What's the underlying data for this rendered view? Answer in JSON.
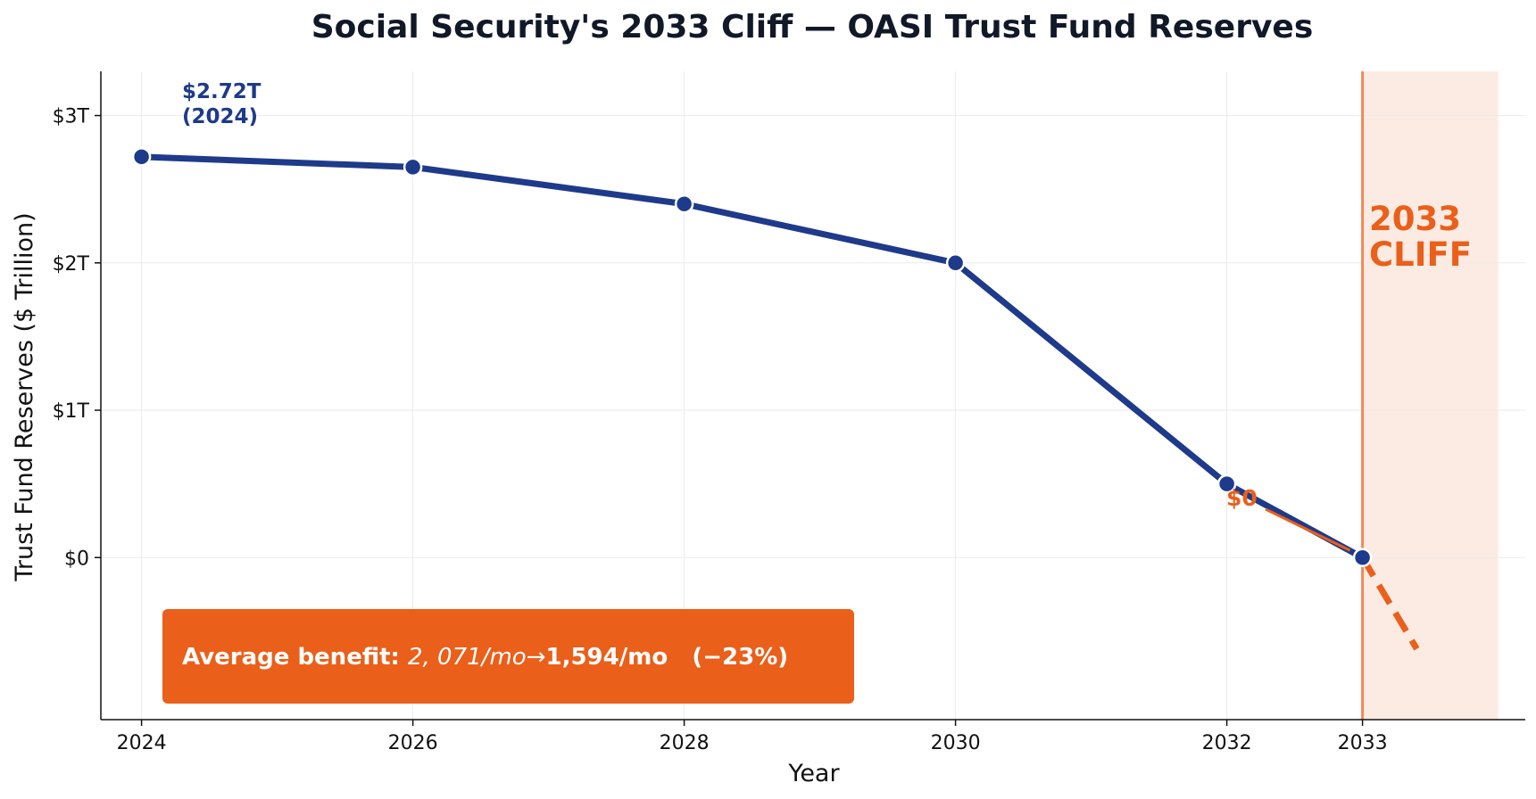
{
  "chart_data": {
    "type": "line",
    "title": "Social Security's 2033 Cliff — OASI Trust Fund Reserves",
    "xlabel": "Year",
    "ylabel": "Trust Fund Reserves ($ Trillion)",
    "x_ticks": [
      2024,
      2026,
      2028,
      2030,
      2032,
      2033
    ],
    "x_tick_labels": [
      "2024",
      "2026",
      "2028",
      "2030",
      "2032",
      "2033"
    ],
    "y_ticks": [
      0,
      1,
      2,
      3
    ],
    "y_tick_labels": [
      "$0",
      "$1T",
      "$2T",
      "$3T"
    ],
    "xlim": [
      2023.7,
      2034.2
    ],
    "ylim": [
      -1.1,
      3.3
    ],
    "grid": true,
    "series": [
      {
        "x": [
          2024,
          2026,
          2028,
          2030,
          2032,
          2033
        ],
        "y": [
          2.72,
          2.65,
          2.4,
          2.0,
          0.5,
          0.0
        ],
        "color": "#1e3a8a"
      }
    ],
    "projection": {
      "x": [
        2033,
        2033.4
      ],
      "y": [
        0.0,
        -0.62
      ],
      "color": "#ea5f1a",
      "style": "dashed"
    },
    "cliff_region": {
      "x_start": 2033,
      "x_end": 2034,
      "fill": "#fcebe2",
      "line_color": "#f08a56"
    },
    "annotations": {
      "start_value": "$2.72T",
      "start_year": "(2024)",
      "zero_label": "$0",
      "cliff_line1": "2033",
      "cliff_line2": "CLIFF"
    },
    "benefit_box": {
      "label": "Average benefit: ",
      "from_value": "2, 071/mo",
      "arrow": "→",
      "to_value": "1,594/mo",
      "change": "   (−23%)",
      "fill": "#ea5f1a"
    }
  }
}
